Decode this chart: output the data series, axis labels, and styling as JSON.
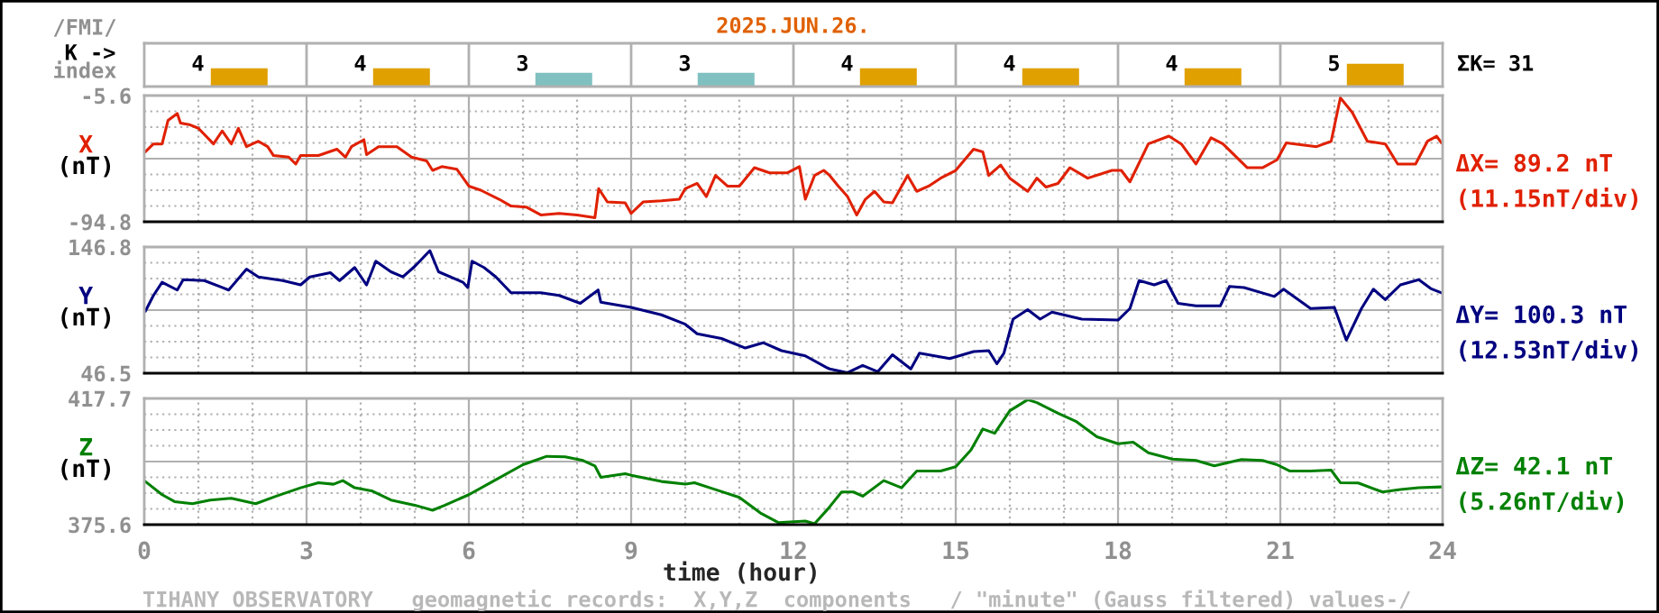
{
  "chart_data": [
    {
      "type": "bar",
      "title": "2025.JUN.26.",
      "categories": [
        null,
        null,
        null,
        null,
        null,
        null,
        null,
        null
      ],
      "values": [
        4,
        4,
        3,
        3,
        4,
        4,
        4,
        5
      ],
      "colors": [
        "#e0a000",
        "#e0a000",
        "#80c0c0",
        "#80c0c0",
        "#e0a000",
        "#e0a000",
        "#e0a000",
        "#e0a000"
      ],
      "data_labels": true,
      "tick_labels": false,
      "annotations": [
        "/FMI/",
        "K ->",
        "index",
        "ΣK= 31",
        "TIHANY OBSERVATORY   geomagnetic records:  X,Y,Z  components   / \"minute\" (Gauss filtered) values-/"
      ]
    },
    {
      "type": "line",
      "ylabel": "X\n(nT)",
      "xlim": [
        0,
        24
      ],
      "xticks": [
        0,
        3,
        6,
        9,
        12,
        15,
        18,
        21,
        24
      ],
      "ylim": [
        -94.8,
        -5.6
      ],
      "yticks": [
        -94.8,
        -5.6
      ],
      "tick_labels": "y",
      "grid": true,
      "x": [
        0.02,
        0.17,
        0.33,
        0.44,
        0.61,
        0.67,
        0.83,
        1.0,
        1.28,
        1.44,
        1.61,
        1.74,
        1.89,
        2.11,
        2.28,
        2.39,
        2.67,
        2.8,
        2.89,
        3.22,
        3.56,
        3.72,
        3.83,
        4.06,
        4.11,
        4.33,
        4.67,
        4.94,
        5.22,
        5.33,
        5.5,
        5.78,
        6.0,
        6.22,
        6.56,
        6.78,
        7.06,
        7.33,
        7.67,
        8.0,
        8.33,
        8.4,
        8.56,
        8.89,
        9.0,
        9.22,
        9.56,
        9.89,
        10.0,
        10.22,
        10.39,
        10.56,
        10.78,
        11.0,
        11.28,
        11.56,
        11.89,
        12.11,
        12.22,
        12.39,
        12.56,
        12.67,
        12.83,
        13.0,
        13.17,
        13.33,
        13.5,
        13.67,
        13.83,
        14.11,
        14.28,
        14.5,
        14.72,
        15.0,
        15.33,
        15.5,
        15.61,
        15.83,
        16.0,
        16.33,
        16.5,
        16.67,
        16.89,
        17.11,
        17.44,
        17.89,
        18.06,
        18.22,
        18.56,
        18.94,
        19.17,
        19.44,
        19.72,
        19.94,
        20.39,
        20.67,
        20.94,
        21.11,
        21.67,
        21.94,
        22.11,
        22.33,
        22.61,
        22.94,
        23.17,
        23.5,
        23.72,
        23.89,
        23.98
      ],
      "series": [
        {
          "color": "#e02000",
          "values": [
            -45.4,
            -39.8,
            -39.8,
            -23.1,
            -18.3,
            -25.0,
            -26.1,
            -28.7,
            -39.8,
            -30.6,
            -39.8,
            -28.7,
            -41.7,
            -37.9,
            -41.7,
            -48.0,
            -49.1,
            -54.0,
            -48.0,
            -48.0,
            -43.5,
            -49.1,
            -41.7,
            -36.8,
            -47.3,
            -41.7,
            -41.7,
            -49.1,
            -51.8,
            -58.5,
            -55.8,
            -57.7,
            -69.6,
            -72.5,
            -78.9,
            -83.7,
            -84.4,
            -90.0,
            -88.9,
            -90.0,
            -91.9,
            -71.4,
            -80.8,
            -81.4,
            -88.9,
            -80.8,
            -80.0,
            -78.9,
            -71.4,
            -67.7,
            -77.0,
            -62.1,
            -69.6,
            -69.6,
            -56.6,
            -60.2,
            -60.2,
            -55.8,
            -78.9,
            -62.1,
            -58.5,
            -62.1,
            -69.6,
            -77.0,
            -90.0,
            -78.9,
            -73.3,
            -80.8,
            -81.4,
            -62.1,
            -73.3,
            -69.6,
            -64.0,
            -58.5,
            -43.5,
            -45.4,
            -62.1,
            -54.7,
            -64.0,
            -73.3,
            -64.0,
            -70.3,
            -67.7,
            -56.6,
            -64.0,
            -58.5,
            -58.5,
            -66.6,
            -39.8,
            -34.3,
            -39.8,
            -54.0,
            -35.4,
            -39.8,
            -56.6,
            -56.6,
            -51.0,
            -39.1,
            -41.7,
            -37.9,
            -7.2,
            -17.5,
            -37.9,
            -39.8,
            -54.0,
            -54.0,
            -37.9,
            -34.3,
            -39.1
          ]
        }
      ],
      "annotations": [
        "ΔX= 89.2 nT",
        "(11.15nT/div)"
      ]
    },
    {
      "type": "line",
      "ylabel": "Y\n(nT)",
      "xlim": [
        0,
        24
      ],
      "xticks": [
        0,
        3,
        6,
        9,
        12,
        15,
        18,
        21,
        24
      ],
      "ylim": [
        46.5,
        146.8
      ],
      "yticks": [
        46.5,
        146.8
      ],
      "tick_labels": "y",
      "grid": true,
      "x": [
        0.02,
        0.17,
        0.33,
        0.61,
        0.72,
        1.11,
        1.44,
        1.56,
        1.89,
        2.11,
        2.56,
        2.89,
        3.06,
        3.44,
        3.61,
        3.89,
        4.11,
        4.28,
        4.56,
        4.78,
        5.0,
        5.28,
        5.44,
        5.89,
        5.98,
        6.06,
        6.28,
        6.5,
        6.78,
        7.06,
        7.33,
        7.67,
        8.06,
        8.39,
        8.44,
        9.0,
        9.56,
        10.0,
        10.22,
        10.67,
        11.11,
        11.44,
        11.78,
        12.22,
        12.61,
        12.67,
        13.0,
        13.28,
        13.56,
        13.83,
        14.17,
        14.33,
        14.89,
        15.33,
        15.61,
        15.76,
        15.89,
        16.06,
        16.33,
        16.56,
        16.78,
        17.33,
        18.0,
        18.22,
        18.39,
        18.67,
        18.89,
        19.11,
        19.44,
        19.89,
        20.06,
        20.33,
        20.89,
        21.06,
        21.56,
        22.0,
        22.22,
        22.5,
        22.72,
        22.94,
        23.22,
        23.56,
        23.78,
        23.98
      ],
      "series": [
        {
          "color": "#000080",
          "values": [
            95.8,
            108.3,
            118.8,
            112.6,
            120.8,
            120.1,
            114.6,
            112.6,
            129.2,
            123.0,
            120.1,
            116.7,
            123.0,
            126.4,
            120.1,
            130.5,
            116.7,
            135.5,
            127.1,
            123.0,
            131.4,
            143.9,
            127.1,
            118.8,
            114.6,
            135.5,
            130.5,
            123.0,
            110.4,
            110.4,
            110.4,
            108.3,
            102.0,
            112.6,
            102.9,
            98.8,
            92.9,
            85.4,
            77.8,
            74.1,
            66.5,
            70.7,
            64.4,
            60.3,
            51.1,
            49.9,
            46.9,
            52.7,
            47.7,
            61.2,
            49.9,
            62.4,
            58.1,
            63.7,
            64.4,
            54.0,
            62.4,
            89.5,
            97.0,
            89.5,
            95.0,
            89.5,
            88.7,
            97.9,
            120.1,
            116.7,
            120.1,
            102.0,
            100.0,
            100.0,
            115.4,
            114.6,
            107.5,
            113.3,
            97.9,
            98.8,
            72.8,
            97.9,
            113.3,
            105.0,
            116.7,
            120.8,
            113.8,
            110.4
          ]
        }
      ],
      "annotations": [
        "ΔY= 100.3 nT",
        "(12.53nT/div)"
      ]
    },
    {
      "type": "line",
      "ylabel": "Z\n(nT)",
      "xlabel": "time (hour)",
      "xlim": [
        0,
        24
      ],
      "xticks": [
        0,
        3,
        6,
        9,
        12,
        15,
        18,
        21,
        24
      ],
      "ylim": [
        375.6,
        417.7
      ],
      "yticks": [
        375.6,
        417.7
      ],
      "grid": true,
      "x": [
        0.02,
        0.33,
        0.56,
        0.89,
        1.22,
        1.61,
        1.89,
        2.06,
        2.44,
        2.89,
        3.22,
        3.5,
        3.67,
        3.89,
        4.22,
        4.56,
        5.0,
        5.33,
        5.56,
        6.0,
        6.44,
        7.0,
        7.44,
        7.78,
        8.11,
        8.33,
        8.44,
        8.89,
        9.0,
        9.56,
        10.0,
        10.17,
        10.56,
        11.0,
        11.39,
        11.72,
        12.22,
        12.39,
        12.64,
        12.89,
        13.11,
        13.28,
        13.67,
        14.0,
        14.28,
        14.72,
        15.0,
        15.28,
        15.5,
        15.72,
        16.0,
        16.33,
        16.5,
        16.89,
        17.22,
        17.61,
        18.0,
        18.28,
        18.56,
        19.0,
        19.44,
        19.78,
        20.28,
        20.67,
        20.94,
        21.17,
        21.56,
        21.94,
        22.11,
        22.44,
        22.89,
        23.22,
        23.56,
        23.98
      ],
      "series": [
        {
          "color": "#008000",
          "values": [
            390.0,
            385.6,
            383.3,
            382.6,
            383.8,
            384.4,
            383.3,
            382.6,
            385.1,
            387.9,
            389.6,
            389.1,
            390.3,
            387.9,
            386.8,
            383.8,
            382.1,
            380.4,
            382.1,
            385.6,
            390.0,
            395.6,
            398.4,
            398.2,
            397.0,
            395.2,
            391.4,
            392.6,
            392.1,
            390.0,
            389.1,
            389.6,
            387.3,
            384.7,
            379.5,
            376.3,
            376.8,
            375.9,
            380.9,
            386.5,
            386.5,
            385.1,
            390.3,
            387.9,
            393.5,
            393.5,
            394.9,
            400.5,
            407.5,
            406.1,
            413.6,
            417.3,
            416.3,
            412.8,
            410.1,
            404.9,
            402.6,
            403.1,
            399.6,
            397.5,
            397.0,
            395.2,
            397.3,
            397.0,
            395.6,
            393.5,
            393.5,
            393.8,
            389.6,
            389.5,
            386.5,
            387.3,
            387.9,
            388.2
          ]
        }
      ],
      "annotations": [
        "ΔZ= 42.1 nT",
        "(5.26nT/div)"
      ]
    }
  ]
}
